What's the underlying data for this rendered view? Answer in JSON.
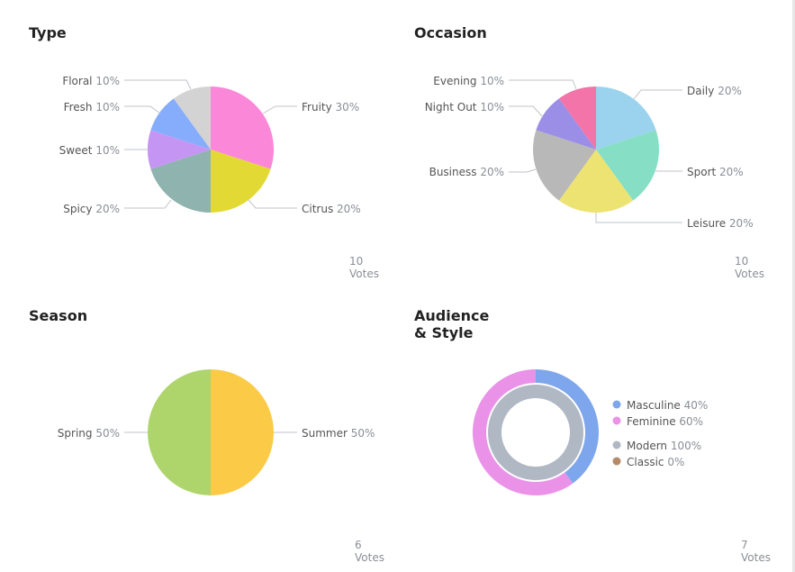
{
  "chart_data": [
    {
      "type": "pie",
      "title": "Type",
      "votes_label": "10 Votes",
      "categories": [
        "Fruity",
        "Citrus",
        "Spicy",
        "Sweet",
        "Fresh",
        "Floral"
      ],
      "values": [
        30,
        20,
        20,
        10,
        10,
        10
      ],
      "colors": [
        "#fb87d9",
        "#e2d935",
        "#8fb3ae",
        "#c595f4",
        "#85adfc",
        "#d3d3d3"
      ],
      "labels": [
        "Fruity 30%",
        "Citrus 20%",
        "Spicy 20%",
        "Sweet 10%",
        "Fresh 10%",
        "Floral 10%"
      ]
    },
    {
      "type": "pie",
      "title": "Occasion",
      "votes_label": "10 Votes",
      "categories": [
        "Daily",
        "Sport",
        "Leisure",
        "Business",
        "Night Out",
        "Evening"
      ],
      "values": [
        20,
        20,
        20,
        20,
        10,
        10
      ],
      "colors": [
        "#9bd3ee",
        "#86dfc5",
        "#ede373",
        "#b8b8b8",
        "#9b8ee7",
        "#f274a8"
      ],
      "labels": [
        "Daily 20%",
        "Sport 20%",
        "Leisure 20%",
        "Business 20%",
        "Night Out 10%",
        "Evening 10%"
      ]
    },
    {
      "type": "pie",
      "title": "Season",
      "votes_label": "6 Votes",
      "categories": [
        "Summer",
        "Spring"
      ],
      "values": [
        50,
        50
      ],
      "colors": [
        "#fbcb48",
        "#aed46c"
      ],
      "labels": [
        "Summer 50%",
        "Spring 50%"
      ]
    },
    {
      "type": "donut",
      "title": "Audience & Style",
      "votes_label": "7 Votes",
      "series": [
        {
          "categories": [
            "Masculine",
            "Feminine"
          ],
          "values": [
            40,
            60
          ],
          "colors": [
            "#7ea6ec",
            "#ea92e8"
          ],
          "labels": [
            "Masculine 40%",
            "Feminine 60%"
          ]
        },
        {
          "categories": [
            "Modern",
            "Classic"
          ],
          "values": [
            100,
            0
          ],
          "colors": [
            "#b0b8c4",
            "#b68a69"
          ],
          "labels": [
            "Modern 100%",
            "Classic 0%"
          ]
        }
      ]
    }
  ]
}
